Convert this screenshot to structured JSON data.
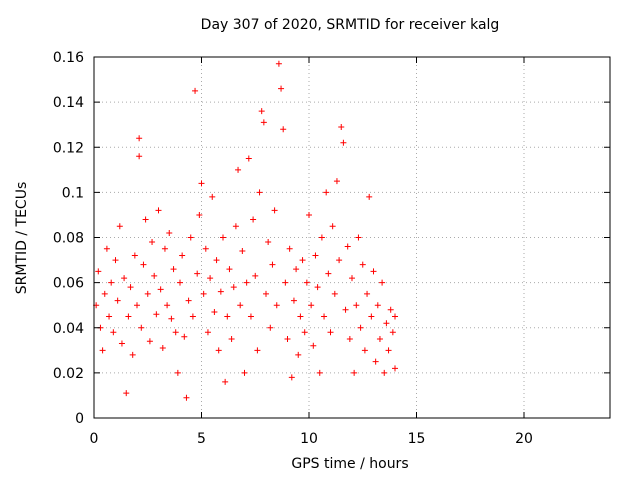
{
  "chart_data": {
    "type": "scatter",
    "title": "Day 307 of 2020, SRMTID for receiver kalg",
    "xlabel": "GPS time / hours",
    "ylabel": "SRMTID / TECUs",
    "xlim": [
      0,
      24
    ],
    "ylim": [
      0,
      0.16
    ],
    "x_ticks": [
      "0",
      "5",
      "10",
      "15",
      "20"
    ],
    "y_ticks": [
      "0",
      "0.02",
      "0.04",
      "0.06",
      "0.08",
      "0.1",
      "0.12",
      "0.14",
      "0.16"
    ],
    "grid": true,
    "marker": "+",
    "color": "#ff0000",
    "series": [
      {
        "points": [
          [
            0.1,
            0.05
          ],
          [
            0.2,
            0.065
          ],
          [
            0.3,
            0.04
          ],
          [
            0.4,
            0.03
          ],
          [
            0.5,
            0.055
          ],
          [
            0.6,
            0.075
          ],
          [
            0.7,
            0.045
          ],
          [
            0.8,
            0.06
          ],
          [
            0.9,
            0.038
          ],
          [
            1.0,
            0.07
          ],
          [
            1.1,
            0.052
          ],
          [
            1.2,
            0.085
          ],
          [
            1.3,
            0.033
          ],
          [
            1.4,
            0.062
          ],
          [
            1.5,
            0.011
          ],
          [
            1.6,
            0.045
          ],
          [
            1.7,
            0.058
          ],
          [
            1.8,
            0.028
          ],
          [
            1.9,
            0.072
          ],
          [
            2.0,
            0.05
          ],
          [
            2.1,
            0.124
          ],
          [
            2.1,
            0.116
          ],
          [
            2.2,
            0.04
          ],
          [
            2.3,
            0.068
          ],
          [
            2.4,
            0.088
          ],
          [
            2.5,
            0.055
          ],
          [
            2.6,
            0.034
          ],
          [
            2.7,
            0.078
          ],
          [
            2.8,
            0.063
          ],
          [
            2.9,
            0.046
          ],
          [
            3.0,
            0.092
          ],
          [
            3.1,
            0.057
          ],
          [
            3.2,
            0.031
          ],
          [
            3.3,
            0.075
          ],
          [
            3.4,
            0.05
          ],
          [
            3.5,
            0.082
          ],
          [
            3.6,
            0.044
          ],
          [
            3.7,
            0.066
          ],
          [
            3.8,
            0.038
          ],
          [
            3.9,
            0.02
          ],
          [
            4.0,
            0.06
          ],
          [
            4.1,
            0.072
          ],
          [
            4.2,
            0.036
          ],
          [
            4.3,
            0.009
          ],
          [
            4.4,
            0.052
          ],
          [
            4.5,
            0.08
          ],
          [
            4.6,
            0.045
          ],
          [
            4.7,
            0.145
          ],
          [
            4.8,
            0.064
          ],
          [
            4.9,
            0.09
          ],
          [
            5.0,
            0.104
          ],
          [
            5.1,
            0.055
          ],
          [
            5.2,
            0.075
          ],
          [
            5.3,
            0.038
          ],
          [
            5.4,
            0.062
          ],
          [
            5.5,
            0.098
          ],
          [
            5.6,
            0.047
          ],
          [
            5.7,
            0.07
          ],
          [
            5.8,
            0.03
          ],
          [
            5.9,
            0.056
          ],
          [
            6.0,
            0.08
          ],
          [
            6.1,
            0.016
          ],
          [
            6.2,
            0.045
          ],
          [
            6.3,
            0.066
          ],
          [
            6.4,
            0.035
          ],
          [
            6.5,
            0.058
          ],
          [
            6.6,
            0.085
          ],
          [
            6.7,
            0.11
          ],
          [
            6.8,
            0.05
          ],
          [
            6.9,
            0.074
          ],
          [
            7.0,
            0.02
          ],
          [
            7.1,
            0.06
          ],
          [
            7.2,
            0.115
          ],
          [
            7.3,
            0.045
          ],
          [
            7.4,
            0.088
          ],
          [
            7.5,
            0.063
          ],
          [
            7.6,
            0.03
          ],
          [
            7.7,
            0.1
          ],
          [
            7.8,
            0.136
          ],
          [
            7.9,
            0.131
          ],
          [
            8.0,
            0.055
          ],
          [
            8.1,
            0.078
          ],
          [
            8.2,
            0.04
          ],
          [
            8.3,
            0.068
          ],
          [
            8.4,
            0.092
          ],
          [
            8.5,
            0.05
          ],
          [
            8.6,
            0.157
          ],
          [
            8.7,
            0.146
          ],
          [
            8.8,
            0.128
          ],
          [
            8.9,
            0.06
          ],
          [
            9.0,
            0.035
          ],
          [
            9.1,
            0.075
          ],
          [
            9.2,
            0.018
          ],
          [
            9.3,
            0.052
          ],
          [
            9.4,
            0.066
          ],
          [
            9.5,
            0.028
          ],
          [
            9.6,
            0.045
          ],
          [
            9.7,
            0.07
          ],
          [
            9.8,
            0.038
          ],
          [
            9.9,
            0.06
          ],
          [
            10.0,
            0.09
          ],
          [
            10.1,
            0.05
          ],
          [
            10.2,
            0.032
          ],
          [
            10.3,
            0.072
          ],
          [
            10.4,
            0.058
          ],
          [
            10.5,
            0.02
          ],
          [
            10.6,
            0.08
          ],
          [
            10.7,
            0.045
          ],
          [
            10.8,
            0.1
          ],
          [
            10.9,
            0.064
          ],
          [
            11.0,
            0.038
          ],
          [
            11.1,
            0.085
          ],
          [
            11.2,
            0.055
          ],
          [
            11.3,
            0.105
          ],
          [
            11.4,
            0.07
          ],
          [
            11.5,
            0.129
          ],
          [
            11.6,
            0.122
          ],
          [
            11.7,
            0.048
          ],
          [
            11.8,
            0.076
          ],
          [
            11.9,
            0.035
          ],
          [
            12.0,
            0.062
          ],
          [
            12.1,
            0.02
          ],
          [
            12.2,
            0.05
          ],
          [
            12.3,
            0.08
          ],
          [
            12.4,
            0.04
          ],
          [
            12.5,
            0.068
          ],
          [
            12.6,
            0.03
          ],
          [
            12.7,
            0.055
          ],
          [
            12.8,
            0.098
          ],
          [
            12.9,
            0.045
          ],
          [
            13.0,
            0.065
          ],
          [
            13.1,
            0.025
          ],
          [
            13.2,
            0.05
          ],
          [
            13.3,
            0.035
          ],
          [
            13.4,
            0.06
          ],
          [
            13.5,
            0.02
          ],
          [
            13.6,
            0.042
          ],
          [
            13.7,
            0.03
          ],
          [
            13.8,
            0.048
          ],
          [
            13.9,
            0.038
          ],
          [
            14.0,
            0.022
          ],
          [
            14.0,
            0.045
          ]
        ]
      }
    ]
  }
}
